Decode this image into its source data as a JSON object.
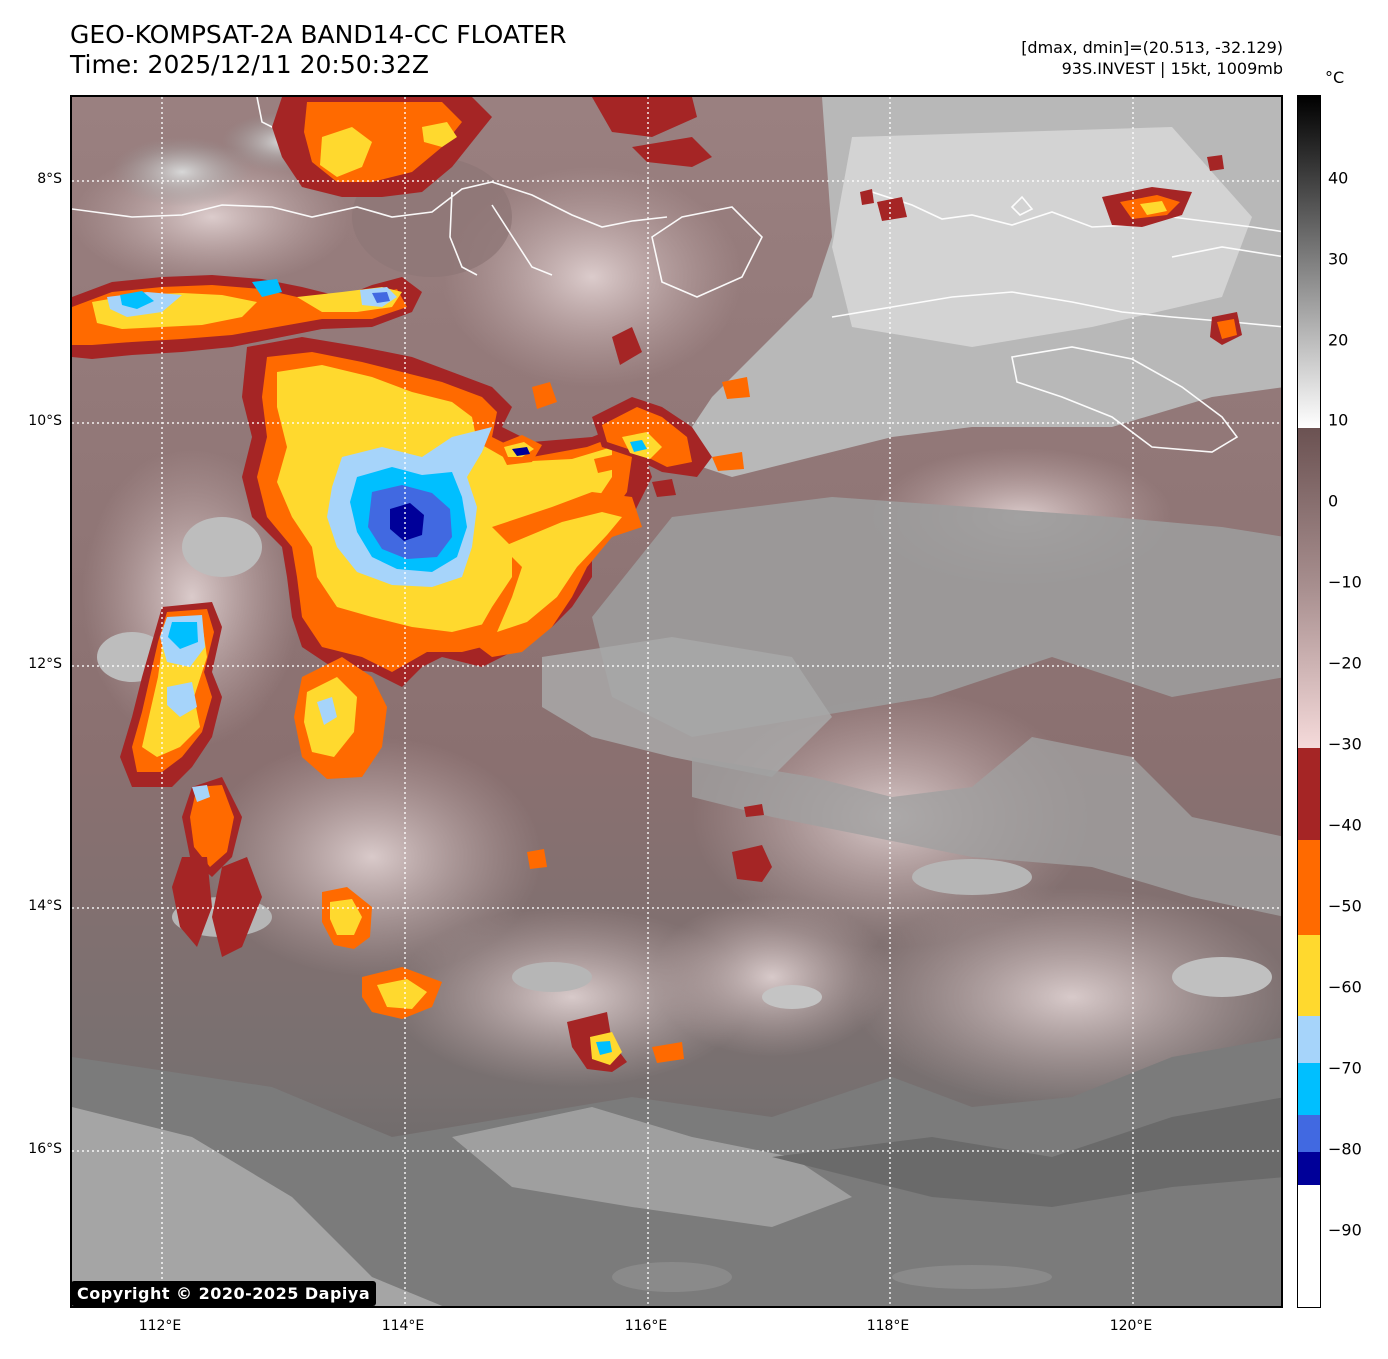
{
  "header": {
    "title_line1": "GEO-KOMPSAT-2A BAND14-CC FLOATER",
    "title_line2": "Time: 2025/12/11 20:50:32Z",
    "stats_line1": "[dmax, dmin]=(20.513, -32.129)",
    "stats_line2": "93S.INVEST | 15kt, 1009mb"
  },
  "axes": {
    "lat_ticks": [
      "8°S",
      "10°S",
      "12°S",
      "14°S",
      "16°S"
    ],
    "lon_ticks": [
      "112°E",
      "114°E",
      "116°E",
      "118°E",
      "120°E"
    ]
  },
  "colorbar": {
    "unit": "°C",
    "ticks": [
      "40",
      "30",
      "20",
      "10",
      "0",
      "−10",
      "−20",
      "−30",
      "−40",
      "−50",
      "−60",
      "−70",
      "−80",
      "−90"
    ],
    "colors": {
      "dark_red": "#a52525",
      "orange": "#ff6a00",
      "yellow": "#ffd92e",
      "light_blue": "#a6d4fa",
      "cyan": "#00bfff",
      "royal_blue": "#4169e1",
      "navy": "#000099",
      "cloud_mauve": "#8c7272",
      "clear_gray": "#6e6e6e"
    }
  },
  "map": {
    "storm_name": "93S.INVEST"
  },
  "footer": {
    "copyright": "Copyright © 2020-2025 Dapiya"
  }
}
